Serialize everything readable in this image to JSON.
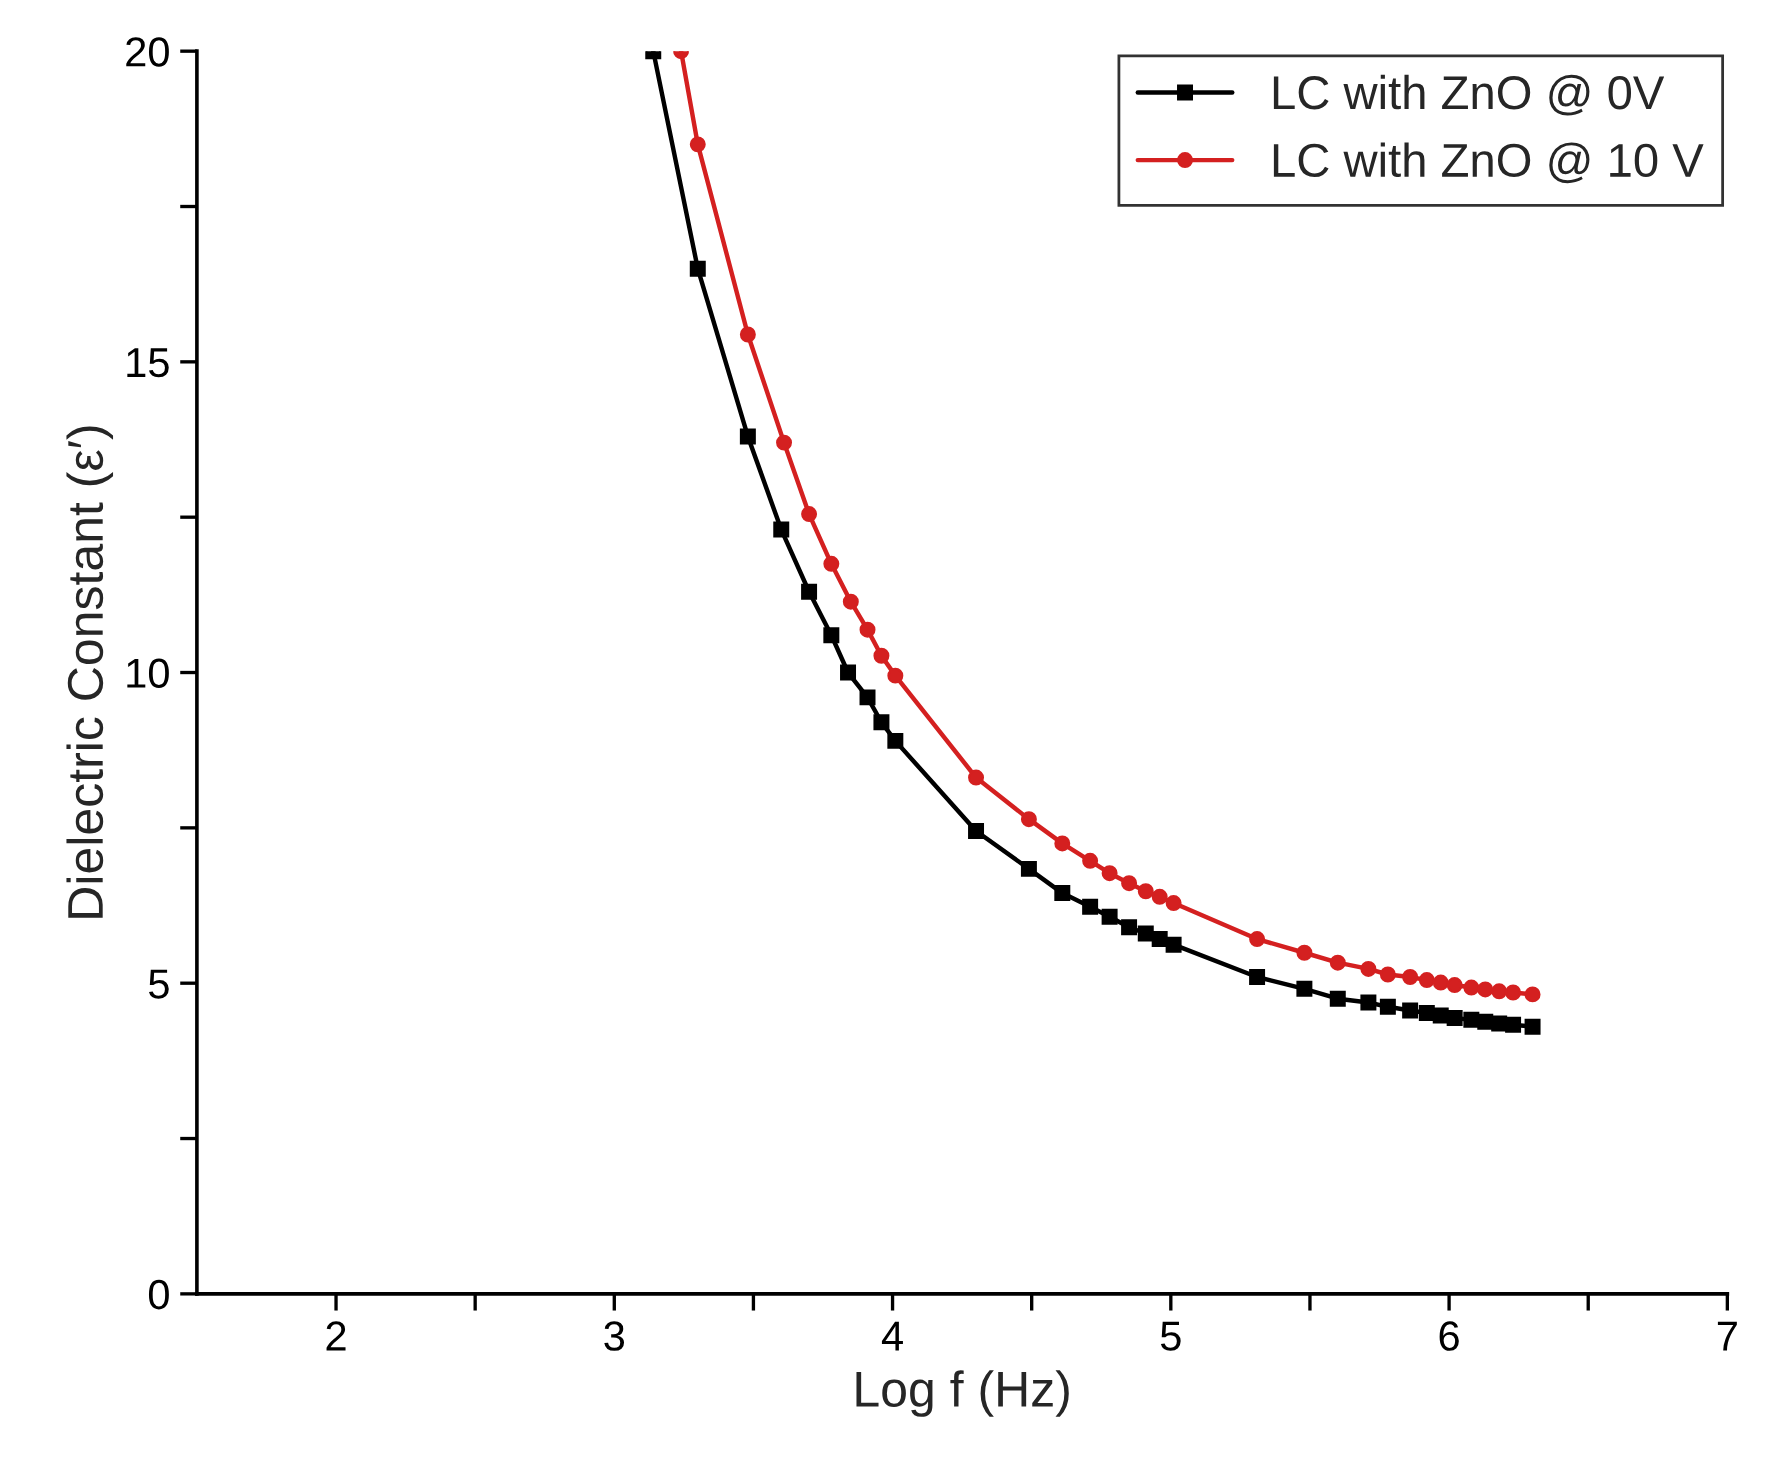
{
  "chart_data": {
    "type": "line",
    "xlabel": "Log f (Hz)",
    "ylabel": "Dielectric Constant (ε′)",
    "xlim": [
      1.5,
      7
    ],
    "ylim": [
      0,
      20
    ],
    "xticks": [
      2,
      {
        "value": 2.5,
        "label": null
      },
      3,
      {
        "value": 3.5,
        "label": null
      },
      4,
      {
        "value": 4.5,
        "label": null
      },
      5,
      {
        "value": 5.5,
        "label": null
      },
      6,
      {
        "value": 6.5,
        "label": null
      },
      7
    ],
    "yticks": [
      0,
      {
        "value": 2.5,
        "label": null
      },
      5,
      {
        "value": 7.5,
        "label": null
      },
      10,
      {
        "value": 12.5,
        "label": null
      },
      15,
      {
        "value": 17.5,
        "label": null
      },
      20
    ],
    "grid": false,
    "legend": "top right",
    "series": [
      {
        "name": "LC with ZnO @ 0V",
        "color": "#000000",
        "marker": "square",
        "x": [
          3.14,
          3.3,
          3.48,
          3.6,
          3.7,
          3.78,
          3.84,
          3.91,
          3.96,
          4.01,
          4.3,
          4.49,
          4.61,
          4.71,
          4.78,
          4.85,
          4.91,
          4.96,
          5.01,
          5.31,
          5.48,
          5.6,
          5.71,
          5.78,
          5.86,
          5.92,
          5.97,
          6.02,
          6.08,
          6.13,
          6.18,
          6.23,
          6.3
        ],
        "values": [
          20,
          16.5,
          13.8,
          12.3,
          11.3,
          10.6,
          10.0,
          9.6,
          9.2,
          8.9,
          7.45,
          6.84,
          6.45,
          6.23,
          6.07,
          5.9,
          5.8,
          5.71,
          5.62,
          5.1,
          4.91,
          4.75,
          4.69,
          4.62,
          4.56,
          4.52,
          4.48,
          4.44,
          4.41,
          4.38,
          4.35,
          4.33,
          4.3
        ]
      },
      {
        "name": "LC with ZnO @ 10 V",
        "color": "#d42020",
        "marker": "circle",
        "x": [
          3.24,
          3.3,
          3.48,
          3.61,
          3.7,
          3.78,
          3.85,
          3.91,
          3.96,
          4.01,
          4.3,
          4.49,
          4.61,
          4.71,
          4.78,
          4.85,
          4.91,
          4.96,
          5.01,
          5.31,
          5.48,
          5.6,
          5.71,
          5.78,
          5.86,
          5.92,
          5.97,
          6.02,
          6.08,
          6.13,
          6.18,
          6.23,
          6.3
        ],
        "values": [
          20,
          18.5,
          15.44,
          13.7,
          12.55,
          11.75,
          11.14,
          10.69,
          10.27,
          9.95,
          8.31,
          7.64,
          7.25,
          6.97,
          6.77,
          6.61,
          6.48,
          6.39,
          6.29,
          5.71,
          5.49,
          5.33,
          5.23,
          5.14,
          5.1,
          5.05,
          5.01,
          4.97,
          4.93,
          4.9,
          4.87,
          4.85,
          4.82
        ]
      }
    ]
  }
}
